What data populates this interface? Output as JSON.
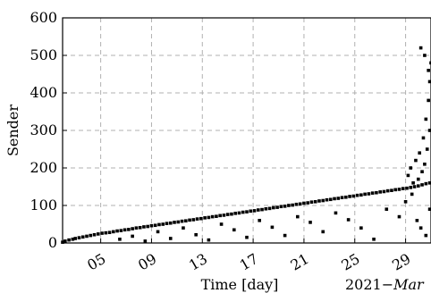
{
  "chart_data": {
    "type": "scatter",
    "title": "",
    "xlabel": "Time [day]",
    "ylabel": "Sender",
    "x_offset_label": "2021−Mar",
    "x_offset_label_year": "2021−",
    "x_offset_label_month": "Mar",
    "xlim": [
      2.0,
      31.0
    ],
    "ylim": [
      0,
      600
    ],
    "x_ticks": [
      5,
      9,
      13,
      17,
      21,
      25,
      29
    ],
    "x_tick_labels": [
      "05",
      "09",
      "13",
      "17",
      "21",
      "25",
      "29"
    ],
    "y_ticks": [
      0,
      100,
      200,
      300,
      400,
      500,
      600
    ],
    "y_tick_labels": [
      "0",
      "100",
      "200",
      "300",
      "400",
      "500",
      "600"
    ],
    "grid": true,
    "marker_color": "#000000",
    "series": [
      {
        "description_from_image": "dense band of points rising from near 0 on Mar 02 to about 150 by Mar 29, with scattered points below the band down to 0, and a burst of points spanning 0 to about 520 on Mar 29 to 31",
        "points": [
          [
            2.0,
            2
          ],
          [
            2.2,
            5
          ],
          [
            2.5,
            8
          ],
          [
            2.8,
            10
          ],
          [
            3.0,
            12
          ],
          [
            3.3,
            14
          ],
          [
            3.6,
            16
          ],
          [
            3.9,
            18
          ],
          [
            4.2,
            20
          ],
          [
            4.5,
            22
          ],
          [
            4.8,
            24
          ],
          [
            5.1,
            26
          ],
          [
            5.4,
            27
          ],
          [
            5.7,
            28
          ],
          [
            6.0,
            30
          ],
          [
            6.3,
            32
          ],
          [
            6.6,
            33
          ],
          [
            6.9,
            35
          ],
          [
            7.2,
            36
          ],
          [
            7.5,
            38
          ],
          [
            7.8,
            40
          ],
          [
            8.1,
            41
          ],
          [
            8.4,
            43
          ],
          [
            8.7,
            44
          ],
          [
            9.0,
            46
          ],
          [
            9.3,
            47
          ],
          [
            9.6,
            49
          ],
          [
            9.9,
            50
          ],
          [
            10.2,
            52
          ],
          [
            10.5,
            53
          ],
          [
            10.8,
            55
          ],
          [
            11.1,
            56
          ],
          [
            11.4,
            58
          ],
          [
            11.7,
            59
          ],
          [
            12.0,
            61
          ],
          [
            12.3,
            62
          ],
          [
            12.6,
            64
          ],
          [
            12.9,
            65
          ],
          [
            13.2,
            67
          ],
          [
            13.5,
            68
          ],
          [
            13.8,
            70
          ],
          [
            14.1,
            71
          ],
          [
            14.4,
            73
          ],
          [
            14.7,
            74
          ],
          [
            15.0,
            76
          ],
          [
            15.3,
            77
          ],
          [
            15.6,
            79
          ],
          [
            15.9,
            80
          ],
          [
            16.2,
            82
          ],
          [
            16.5,
            83
          ],
          [
            16.8,
            85
          ],
          [
            17.1,
            86
          ],
          [
            17.4,
            88
          ],
          [
            17.7,
            89
          ],
          [
            18.0,
            91
          ],
          [
            18.3,
            92
          ],
          [
            18.6,
            94
          ],
          [
            18.9,
            95
          ],
          [
            19.2,
            97
          ],
          [
            19.5,
            98
          ],
          [
            19.8,
            100
          ],
          [
            20.1,
            101
          ],
          [
            20.4,
            103
          ],
          [
            20.7,
            104
          ],
          [
            21.0,
            106
          ],
          [
            21.3,
            107
          ],
          [
            21.6,
            109
          ],
          [
            21.9,
            110
          ],
          [
            22.2,
            112
          ],
          [
            22.5,
            113
          ],
          [
            22.8,
            115
          ],
          [
            23.1,
            116
          ],
          [
            23.4,
            118
          ],
          [
            23.7,
            119
          ],
          [
            24.0,
            121
          ],
          [
            24.3,
            122
          ],
          [
            24.6,
            124
          ],
          [
            24.9,
            125
          ],
          [
            25.2,
            127
          ],
          [
            25.5,
            128
          ],
          [
            25.8,
            130
          ],
          [
            26.1,
            131
          ],
          [
            26.4,
            133
          ],
          [
            26.7,
            134
          ],
          [
            27.0,
            136
          ],
          [
            27.3,
            137
          ],
          [
            27.6,
            139
          ],
          [
            27.9,
            140
          ],
          [
            28.2,
            142
          ],
          [
            28.5,
            143
          ],
          [
            28.8,
            145
          ],
          [
            29.1,
            146
          ],
          [
            29.4,
            148
          ],
          [
            29.7,
            150
          ],
          [
            30.0,
            152
          ],
          [
            30.3,
            155
          ],
          [
            30.6,
            158
          ],
          [
            30.9,
            160
          ],
          [
            6.5,
            10
          ],
          [
            7.5,
            18
          ],
          [
            8.5,
            5
          ],
          [
            9.5,
            30
          ],
          [
            10.5,
            12
          ],
          [
            11.5,
            40
          ],
          [
            12.5,
            22
          ],
          [
            13.5,
            8
          ],
          [
            14.5,
            50
          ],
          [
            15.5,
            35
          ],
          [
            16.5,
            15
          ],
          [
            17.5,
            60
          ],
          [
            18.5,
            42
          ],
          [
            19.5,
            20
          ],
          [
            20.5,
            70
          ],
          [
            21.5,
            55
          ],
          [
            22.5,
            30
          ],
          [
            23.5,
            80
          ],
          [
            24.5,
            62
          ],
          [
            25.5,
            40
          ],
          [
            26.5,
            10
          ],
          [
            27.5,
            90
          ],
          [
            28.5,
            70
          ],
          [
            29.0,
            110
          ],
          [
            29.5,
            130
          ],
          [
            30.0,
            170
          ],
          [
            30.3,
            190
          ],
          [
            30.5,
            210
          ],
          [
            30.7,
            250
          ],
          [
            30.9,
            300
          ],
          [
            29.2,
            180
          ],
          [
            29.4,
            200
          ],
          [
            29.6,
            160
          ],
          [
            29.8,
            220
          ],
          [
            30.1,
            240
          ],
          [
            30.4,
            280
          ],
          [
            30.6,
            330
          ],
          [
            30.8,
            380
          ],
          [
            30.9,
            430
          ],
          [
            31.0,
            480
          ],
          [
            30.2,
            520
          ],
          [
            30.5,
            500
          ],
          [
            30.8,
            460
          ],
          [
            29.9,
            60
          ],
          [
            30.2,
            40
          ],
          [
            30.6,
            20
          ],
          [
            30.9,
            90
          ]
        ]
      }
    ]
  }
}
